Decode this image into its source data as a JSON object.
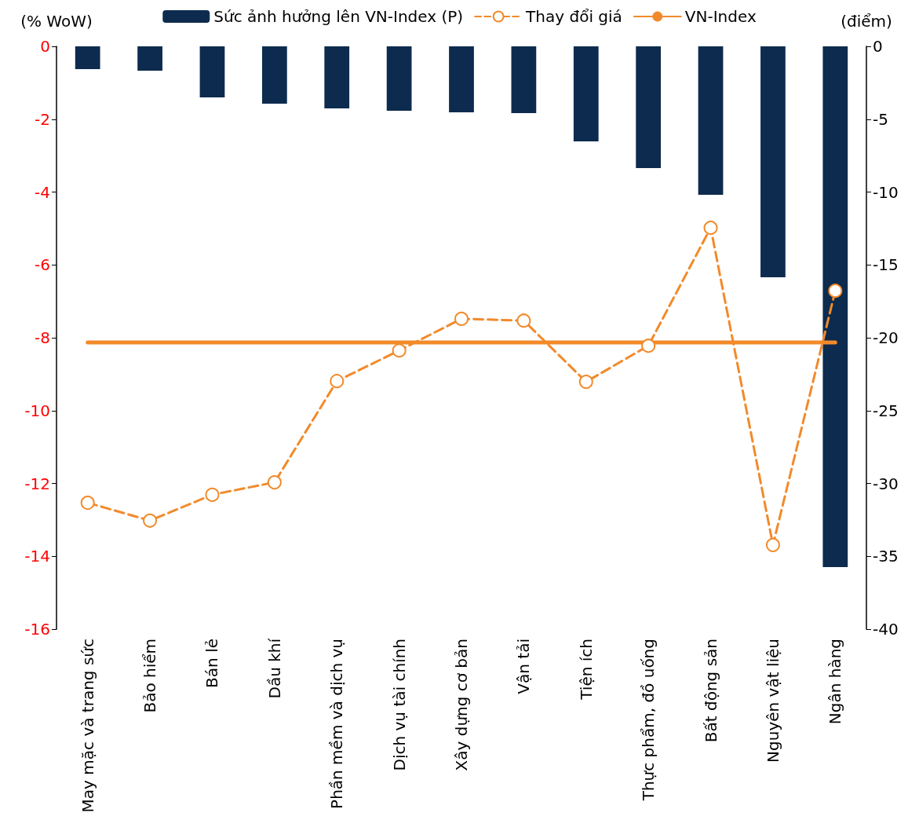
{
  "chart_data": {
    "type": "bar",
    "ylabel": "(% WoW)",
    "y2label": "(điểm)",
    "categories": [
      "May mặc và trang sức",
      "Bảo hiểm",
      "Bán lẻ",
      "Dầu khí",
      "Phần mềm và dịch vụ",
      "Dịch vụ tài chính",
      "Xây dựng cơ bản",
      "Vận tải",
      "Tiện ích",
      "Thực phẩm, đồ uống",
      "Bất động sản",
      "Nguyên vật liệu",
      "Ngân hàng"
    ],
    "series": [
      {
        "name": "Sức ảnh hưởng lên VN-Index (P)",
        "axis": "y2",
        "color": "#0d2b4e",
        "values": [
          -1.56,
          -1.67,
          -3.5,
          -3.94,
          -4.26,
          -4.42,
          -4.53,
          -4.58,
          -6.52,
          -8.36,
          -10.19,
          -15.85,
          -35.74
        ]
      },
      {
        "name": "Thay đổi giá",
        "type": "line",
        "color": "#f28a2b",
        "marker": "circle",
        "line_style": "dashed",
        "values": [
          -12.53,
          -13.02,
          -12.31,
          -11.97,
          -9.19,
          -8.35,
          -7.48,
          -7.53,
          -9.21,
          -8.22,
          -4.98,
          -13.69,
          -6.71
        ]
      },
      {
        "name": "VN-Index",
        "type": "line",
        "color": "#f28a2b",
        "marker": "none",
        "line_style": "solid",
        "values": [
          -8.13,
          -8.13,
          -8.13,
          -8.13,
          -8.13,
          -8.13,
          -8.13,
          -8.13,
          -8.13,
          -8.13,
          -8.13,
          -8.13,
          -8.13
        ]
      }
    ],
    "ylim": [
      -16,
      0
    ],
    "yticks": [
      -16,
      -14,
      -12,
      -10,
      -8,
      -6,
      -4,
      -2,
      0
    ],
    "y2lim": [
      -40,
      0
    ],
    "y2ticks": [
      -40,
      -35,
      -30,
      -25,
      -20,
      -15,
      -10,
      -5,
      0
    ],
    "grid": false,
    "legend": "top"
  }
}
